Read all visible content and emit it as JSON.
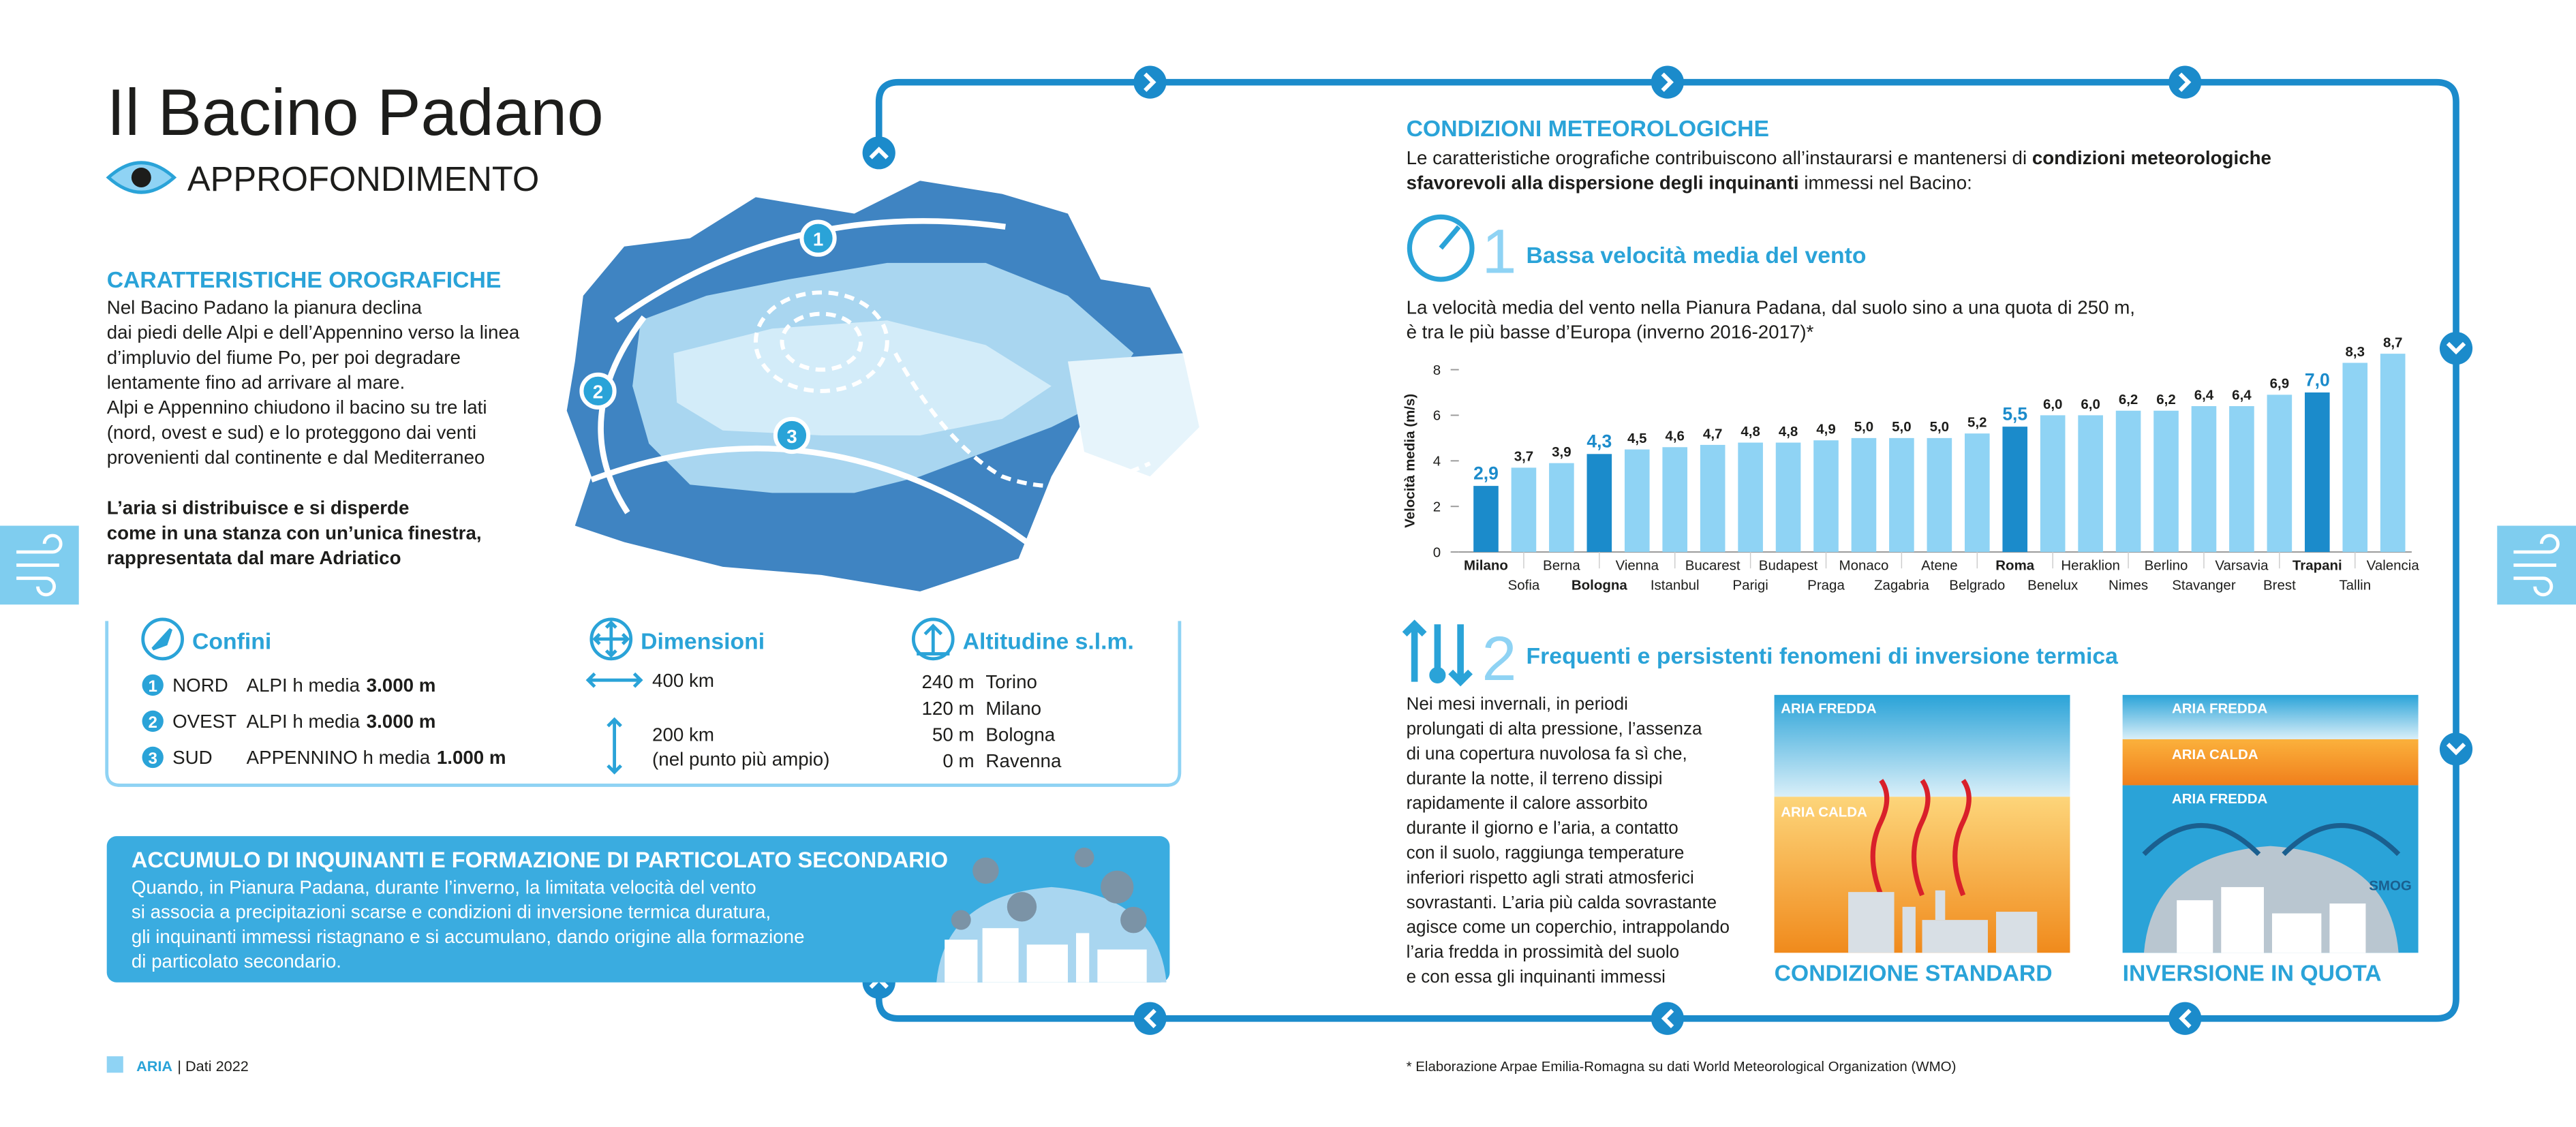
{
  "header": {
    "title": "Il Bacino Padano",
    "subtitle": "APPROFONDIMENTO"
  },
  "orografia": {
    "heading": "CARATTERISTICHE OROGRAFICHE",
    "text": [
      "Nel Bacino Padano la pianura declina",
      "dai piedi delle Alpi e dell’Appennino verso la linea",
      "d’impluvio del fiume Po, per poi degradare",
      "lentamente fino ad arrivare al mare.",
      "Alpi e Appennino chiudono il bacino su tre lati",
      "(nord, ovest e sud) e lo proteggono dai venti",
      "provenienti dal continente e dal Mediterraneo"
    ],
    "highlight": [
      "L’aria si distribuisce e si disperde",
      "come in una stanza con un’unica finestra,",
      "rappresentata dal mare Adriatico"
    ]
  },
  "map": {
    "labels": [
      "1",
      "2",
      "3"
    ]
  },
  "confini": {
    "heading": "Confini",
    "rows": [
      {
        "num": "1",
        "side": "NORD",
        "range": "ALPI h media",
        "height": "3.000 m"
      },
      {
        "num": "2",
        "side": "OVEST",
        "range": "ALPI h media",
        "height": "3.000 m"
      },
      {
        "num": "3",
        "side": "SUD",
        "range": "APPENNINO h media",
        "height": "1.000 m"
      }
    ]
  },
  "dimensioni": {
    "heading": "Dimensioni",
    "length": "400 km",
    "width": "200 km",
    "width_note": "(nel punto più ampio)"
  },
  "altitudine": {
    "heading": "Altitudine s.l.m.",
    "rows": [
      {
        "height": "240 m",
        "city": "Torino"
      },
      {
        "height": "120 m",
        "city": "Milano"
      },
      {
        "height": "50 m",
        "city": "Bologna"
      },
      {
        "height": "0 m",
        "city": "Ravenna"
      }
    ]
  },
  "accumulo": {
    "heading": "ACCUMULO DI INQUINANTI E FORMAZIONE DI PARTICOLATO SECONDARIO",
    "text": [
      "Quando, in Pianura Padana, durante l’inverno, la limitata velocità del vento",
      "si associa a precipitazioni scarse e condizioni di inversione termica duratura,",
      "gli inquinanti immessi ristagnano e si accumulano, dando origine alla formazione",
      "di particolato secondario."
    ]
  },
  "meteo": {
    "heading": "CONDIZIONI METEOROLOGICHE",
    "intro": [
      [
        "Le caratteristiche orografiche contribuiscono all’instaurarsi e mantenersi di ",
        {
          "text": "condizioni meteorologiche",
          "bold": true
        }
      ],
      [
        {
          "text": "sfavorevoli alla dispersione degli inquinanti",
          "bold": true
        },
        " immessi nel Bacino:"
      ]
    ]
  },
  "wind": {
    "number": "1",
    "title": "Bassa velocità media del vento",
    "text": [
      "La velocità media del vento nella Pianura Padana, dal suolo sino a una quota di 250 m,",
      "è tra le più basse d’Europa (inverno 2016-2017)*"
    ]
  },
  "chart_data": {
    "type": "bar",
    "y_label": "Velocità media (m/s)",
    "categories": [
      "Milano",
      "Sofia",
      "Berna",
      "Bologna",
      "Vienna",
      "Istanbul",
      "Bucarest",
      "Parigi",
      "Budapest",
      "Praga",
      "Monaco",
      "Zagabria",
      "Atene",
      "Belgrado",
      "Roma",
      "Benelux",
      "Heraklion",
      "Nimes",
      "Berlino",
      "Stavanger",
      "Varsavia",
      "Brest",
      "Trapani",
      "Tallin",
      "Valencia"
    ],
    "values": [
      2.9,
      3.7,
      3.9,
      4.3,
      4.5,
      4.6,
      4.7,
      4.8,
      4.8,
      4.9,
      5.0,
      5.0,
      5.0,
      5.2,
      5.5,
      6.0,
      6.0,
      6.2,
      6.2,
      6.4,
      6.4,
      6.9,
      7.0,
      8.3,
      8.7
    ],
    "value_labels": [
      "2,9",
      "3,7",
      "3,9",
      "4,3",
      "4,5",
      "4,6",
      "4,7",
      "4,8",
      "4,8",
      "4,9",
      "5,0",
      "5,0",
      "5,0",
      "5,2",
      "5,5",
      "6,0",
      "6,0",
      "6,2",
      "6,2",
      "6,4",
      "6,4",
      "6,9",
      "7,0",
      "8,3",
      "8,7"
    ],
    "highlighted": [
      true,
      false,
      false,
      true,
      false,
      false,
      false,
      false,
      false,
      false,
      false,
      false,
      false,
      false,
      true,
      false,
      false,
      false,
      false,
      false,
      false,
      false,
      true,
      false,
      false
    ],
    "color": "#8fd3f4",
    "highlight_color": "#1b8bcb",
    "ylim": [
      0,
      8
    ],
    "yticks": [
      0,
      2,
      4,
      6,
      8
    ]
  },
  "inversion": {
    "number": "2",
    "title": "Frequenti e persistenti fenomeni di inversione termica",
    "text": [
      "Nei mesi invernali, in periodi",
      "prolungati di alta pressione, l’assenza",
      "di una copertura nuvolosa fa sì che,",
      "durante la notte, il terreno dissipi",
      "rapidamente il calore assorbito",
      "durante il giorno e l’aria, a contatto",
      "con il suolo, raggiunga temperature",
      "inferiori rispetto agli strati atmosferici",
      "sovrastanti. L’aria più calda sovrastante",
      "agisce come un coperchio, intrappolando",
      "l’aria fredda in prossimità del suolo",
      "e con essa gli inquinanti immessi"
    ],
    "standard": {
      "cold": "ARIA FREDDA",
      "warm": "ARIA CALDA",
      "caption": "CONDIZIONE STANDARD"
    },
    "quota": {
      "cold_top": "ARIA FREDDA",
      "warm": "ARIA CALDA",
      "cold_bottom": "ARIA FREDDA",
      "smog": "SMOG",
      "caption": "INVERSIONE IN QUOTA"
    }
  },
  "footer": {
    "section": "ARIA",
    "edition": "| Dati 2022",
    "note": "* Elaborazione Arpae Emilia-Romagna su dati World Meteorological Organization (WMO)"
  }
}
